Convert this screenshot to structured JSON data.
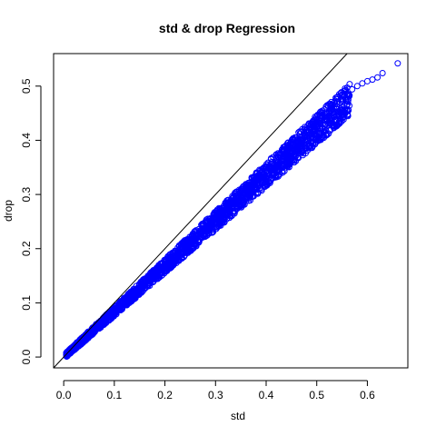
{
  "chart_data": {
    "type": "scatter",
    "title": "std & drop Regression",
    "xlabel": "std",
    "ylabel": "drop",
    "xlim": [
      -0.02,
      0.68
    ],
    "ylim": [
      -0.02,
      0.56
    ],
    "x_ticks": [
      "0.0",
      "0.1",
      "0.2",
      "0.3",
      "0.4",
      "0.5",
      "0.6"
    ],
    "y_ticks": [
      "0.0",
      "0.1",
      "0.2",
      "0.3",
      "0.4",
      "0.5"
    ],
    "point_color": "#0000ff",
    "reference_line": {
      "slope": 1,
      "intercept": 0,
      "color": "#000000"
    },
    "grid": false,
    "legend": "none",
    "series": [
      {
        "x": [
          0.005,
          0.01,
          0.02,
          0.03,
          0.04,
          0.05,
          0.06,
          0.07,
          0.08,
          0.09,
          0.1,
          0.11,
          0.12,
          0.13,
          0.14,
          0.15,
          0.16,
          0.17,
          0.18,
          0.19,
          0.2,
          0.21,
          0.22,
          0.23,
          0.24,
          0.25,
          0.26,
          0.27,
          0.28,
          0.29,
          0.3,
          0.31,
          0.32,
          0.33,
          0.34,
          0.35,
          0.36,
          0.37,
          0.38,
          0.39,
          0.4,
          0.41,
          0.42,
          0.43,
          0.44,
          0.45,
          0.46,
          0.47,
          0.48,
          0.49,
          0.5,
          0.51,
          0.52,
          0.53,
          0.54,
          0.55,
          0.56,
          0.57,
          0.58,
          0.59,
          0.6,
          0.61,
          0.62,
          0.63,
          0.66
        ],
        "y": [
          0.004,
          0.008,
          0.016,
          0.025,
          0.033,
          0.041,
          0.05,
          0.058,
          0.067,
          0.075,
          0.083,
          0.092,
          0.1,
          0.108,
          0.117,
          0.125,
          0.134,
          0.142,
          0.151,
          0.159,
          0.168,
          0.176,
          0.185,
          0.193,
          0.202,
          0.21,
          0.219,
          0.228,
          0.236,
          0.245,
          0.254,
          0.262,
          0.271,
          0.28,
          0.289,
          0.298,
          0.306,
          0.315,
          0.324,
          0.333,
          0.342,
          0.351,
          0.36,
          0.369,
          0.378,
          0.387,
          0.396,
          0.405,
          0.414,
          0.423,
          0.432,
          0.441,
          0.45,
          0.459,
          0.467,
          0.476,
          0.485,
          0.494,
          0.5,
          0.505,
          0.509,
          0.512,
          0.516,
          0.524,
          0.542
        ]
      }
    ]
  }
}
